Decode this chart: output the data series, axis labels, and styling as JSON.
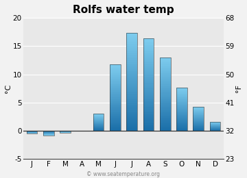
{
  "title": "Rolfs water temp",
  "months": [
    "J",
    "F",
    "M",
    "A",
    "M",
    "J",
    "J",
    "A",
    "S",
    "O",
    "N",
    "D"
  ],
  "values_c": [
    -0.5,
    -0.8,
    -0.3,
    0.0,
    3.0,
    11.7,
    17.3,
    16.3,
    13.0,
    7.6,
    4.3,
    1.6
  ],
  "ylim_c": [
    -5,
    20
  ],
  "yticks_c": [
    -5,
    0,
    5,
    10,
    15,
    20
  ],
  "ylim_f": [
    23,
    68
  ],
  "yticks_f": [
    23,
    32,
    41,
    50,
    59,
    68
  ],
  "ylabel_left": "°C",
  "ylabel_right": "°F",
  "watermark": "© www.seatemperature.org",
  "bar_color_top": "#7DCCEE",
  "bar_color_bottom": "#1A6EA8",
  "bg_color": "#f2f2f2",
  "plot_bg_color": "#e8e8e8",
  "grid_color": "#ffffff",
  "zero_line_color": "#333333",
  "title_fontsize": 11,
  "tick_fontsize": 7.5,
  "label_fontsize": 8,
  "watermark_fontsize": 5.5,
  "bar_width": 0.65,
  "n_gradient_steps": 100
}
